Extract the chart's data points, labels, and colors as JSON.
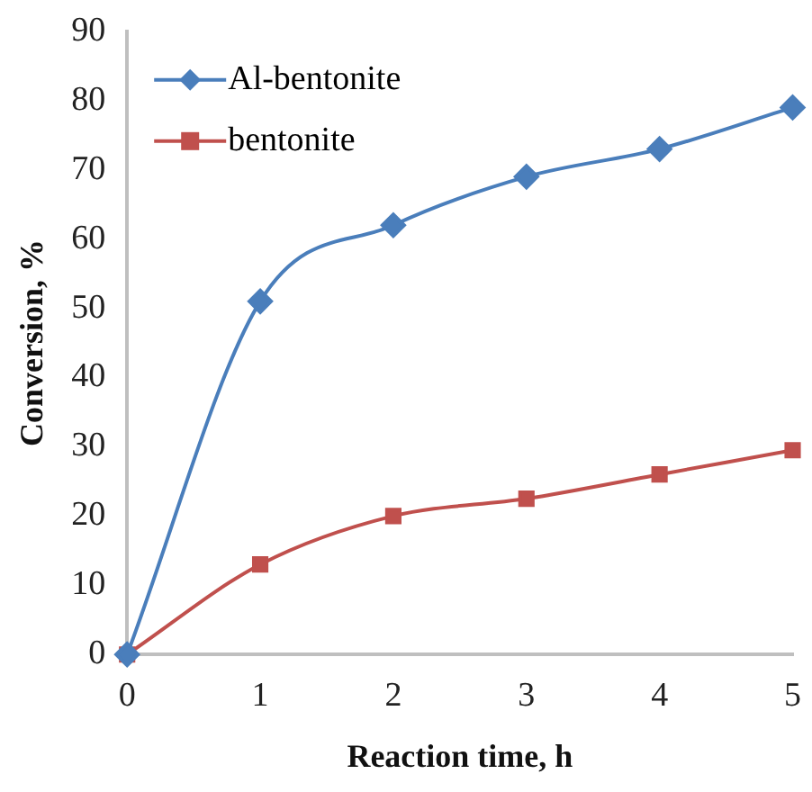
{
  "chart_data": {
    "type": "line",
    "xlabel": "Reaction time, h",
    "ylabel": "Conversion, %",
    "x": [
      0,
      1,
      2,
      3,
      4,
      5
    ],
    "series": [
      {
        "name": "Al-bentonite",
        "color": "#4a7ebb",
        "marker": "diamond",
        "values": [
          0,
          51,
          62,
          69,
          73,
          79
        ]
      },
      {
        "name": "bentonite",
        "color": "#c0504d",
        "marker": "square",
        "values": [
          0,
          13,
          20,
          22.5,
          26,
          29.5
        ]
      }
    ],
    "xlim": [
      0,
      5
    ],
    "xticks": [
      0,
      1,
      2,
      3,
      4,
      5
    ],
    "ylim": [
      0,
      90
    ],
    "yticks": [
      0,
      10,
      20,
      30,
      40,
      50,
      60,
      70,
      80,
      90
    ],
    "legend": "top left"
  }
}
